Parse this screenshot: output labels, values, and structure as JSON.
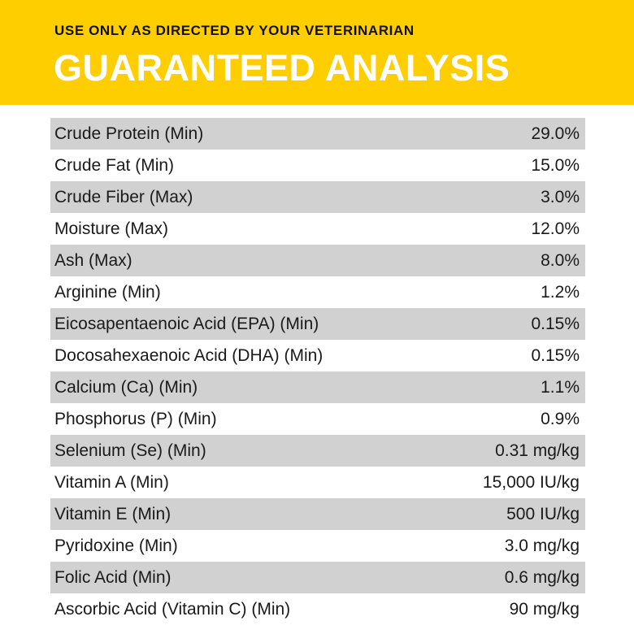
{
  "header": {
    "subtitle": "USE ONLY AS DIRECTED BY YOUR VETERINARIAN",
    "title": "GUARANTEED ANALYSIS",
    "background_color": "#FFCE00"
  },
  "analysis": {
    "row_shade_color": "#D1D1D1",
    "rows": [
      {
        "label": "Crude Protein (Min)",
        "value": "29.0%"
      },
      {
        "label": "Crude Fat (Min)",
        "value": "15.0%"
      },
      {
        "label": "Crude Fiber (Max)",
        "value": "3.0%"
      },
      {
        "label": "Moisture (Max)",
        "value": "12.0%"
      },
      {
        "label": "Ash (Max)",
        "value": "8.0%"
      },
      {
        "label": "Arginine (Min)",
        "value": "1.2%"
      },
      {
        "label": "Eicosapentaenoic Acid (EPA) (Min)",
        "value": "0.15%"
      },
      {
        "label": "Docosahexaenoic Acid (DHA) (Min)",
        "value": "0.15%"
      },
      {
        "label": "Calcium (Ca) (Min)",
        "value": "1.1%"
      },
      {
        "label": "Phosphorus (P) (Min)",
        "value": "0.9%"
      },
      {
        "label": "Selenium (Se) (Min)",
        "value": "0.31 mg/kg"
      },
      {
        "label": "Vitamin A (Min)",
        "value": "15,000 IU/kg"
      },
      {
        "label": "Vitamin E (Min)",
        "value": "500 IU/kg"
      },
      {
        "label": "Pyridoxine (Min)",
        "value": "3.0 mg/kg"
      },
      {
        "label": "Folic Acid (Min)",
        "value": "0.6 mg/kg"
      },
      {
        "label": "Ascorbic Acid (Vitamin C) (Min)",
        "value": "90 mg/kg"
      }
    ]
  }
}
